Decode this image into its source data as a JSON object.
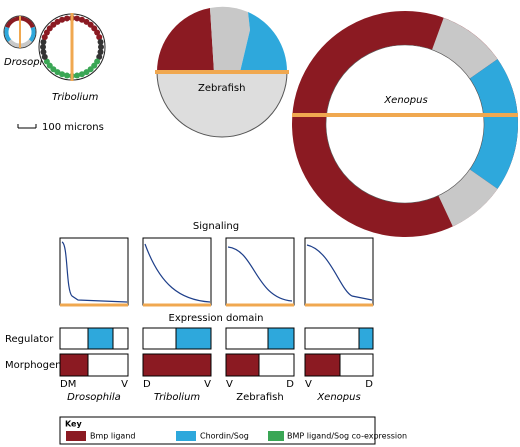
{
  "embryos": [
    {
      "label": "Drosophila"
    },
    {
      "label": "Tribolium"
    },
    {
      "label": "Zebrafish"
    },
    {
      "label": "Xenopus"
    }
  ],
  "scale_bar": "100 microns",
  "panel": {
    "signaling_label": "Signaling",
    "expression_label": "Expression domain",
    "row_labels": [
      "Regulator",
      "Morphogen"
    ],
    "columns": [
      {
        "name": "Drosophila",
        "left": "DM",
        "right": "V"
      },
      {
        "name": "Tribolium",
        "left": "D",
        "right": "V"
      },
      {
        "name": "Zebrafish",
        "left": "V",
        "right": "D"
      },
      {
        "name": "Xenopus",
        "left": "V",
        "right": "D"
      }
    ]
  },
  "key": {
    "title": "Key",
    "items": [
      "Bmp ligand",
      "Chordin/Sog",
      "BMP ligand/Sog co-expression"
    ]
  }
}
